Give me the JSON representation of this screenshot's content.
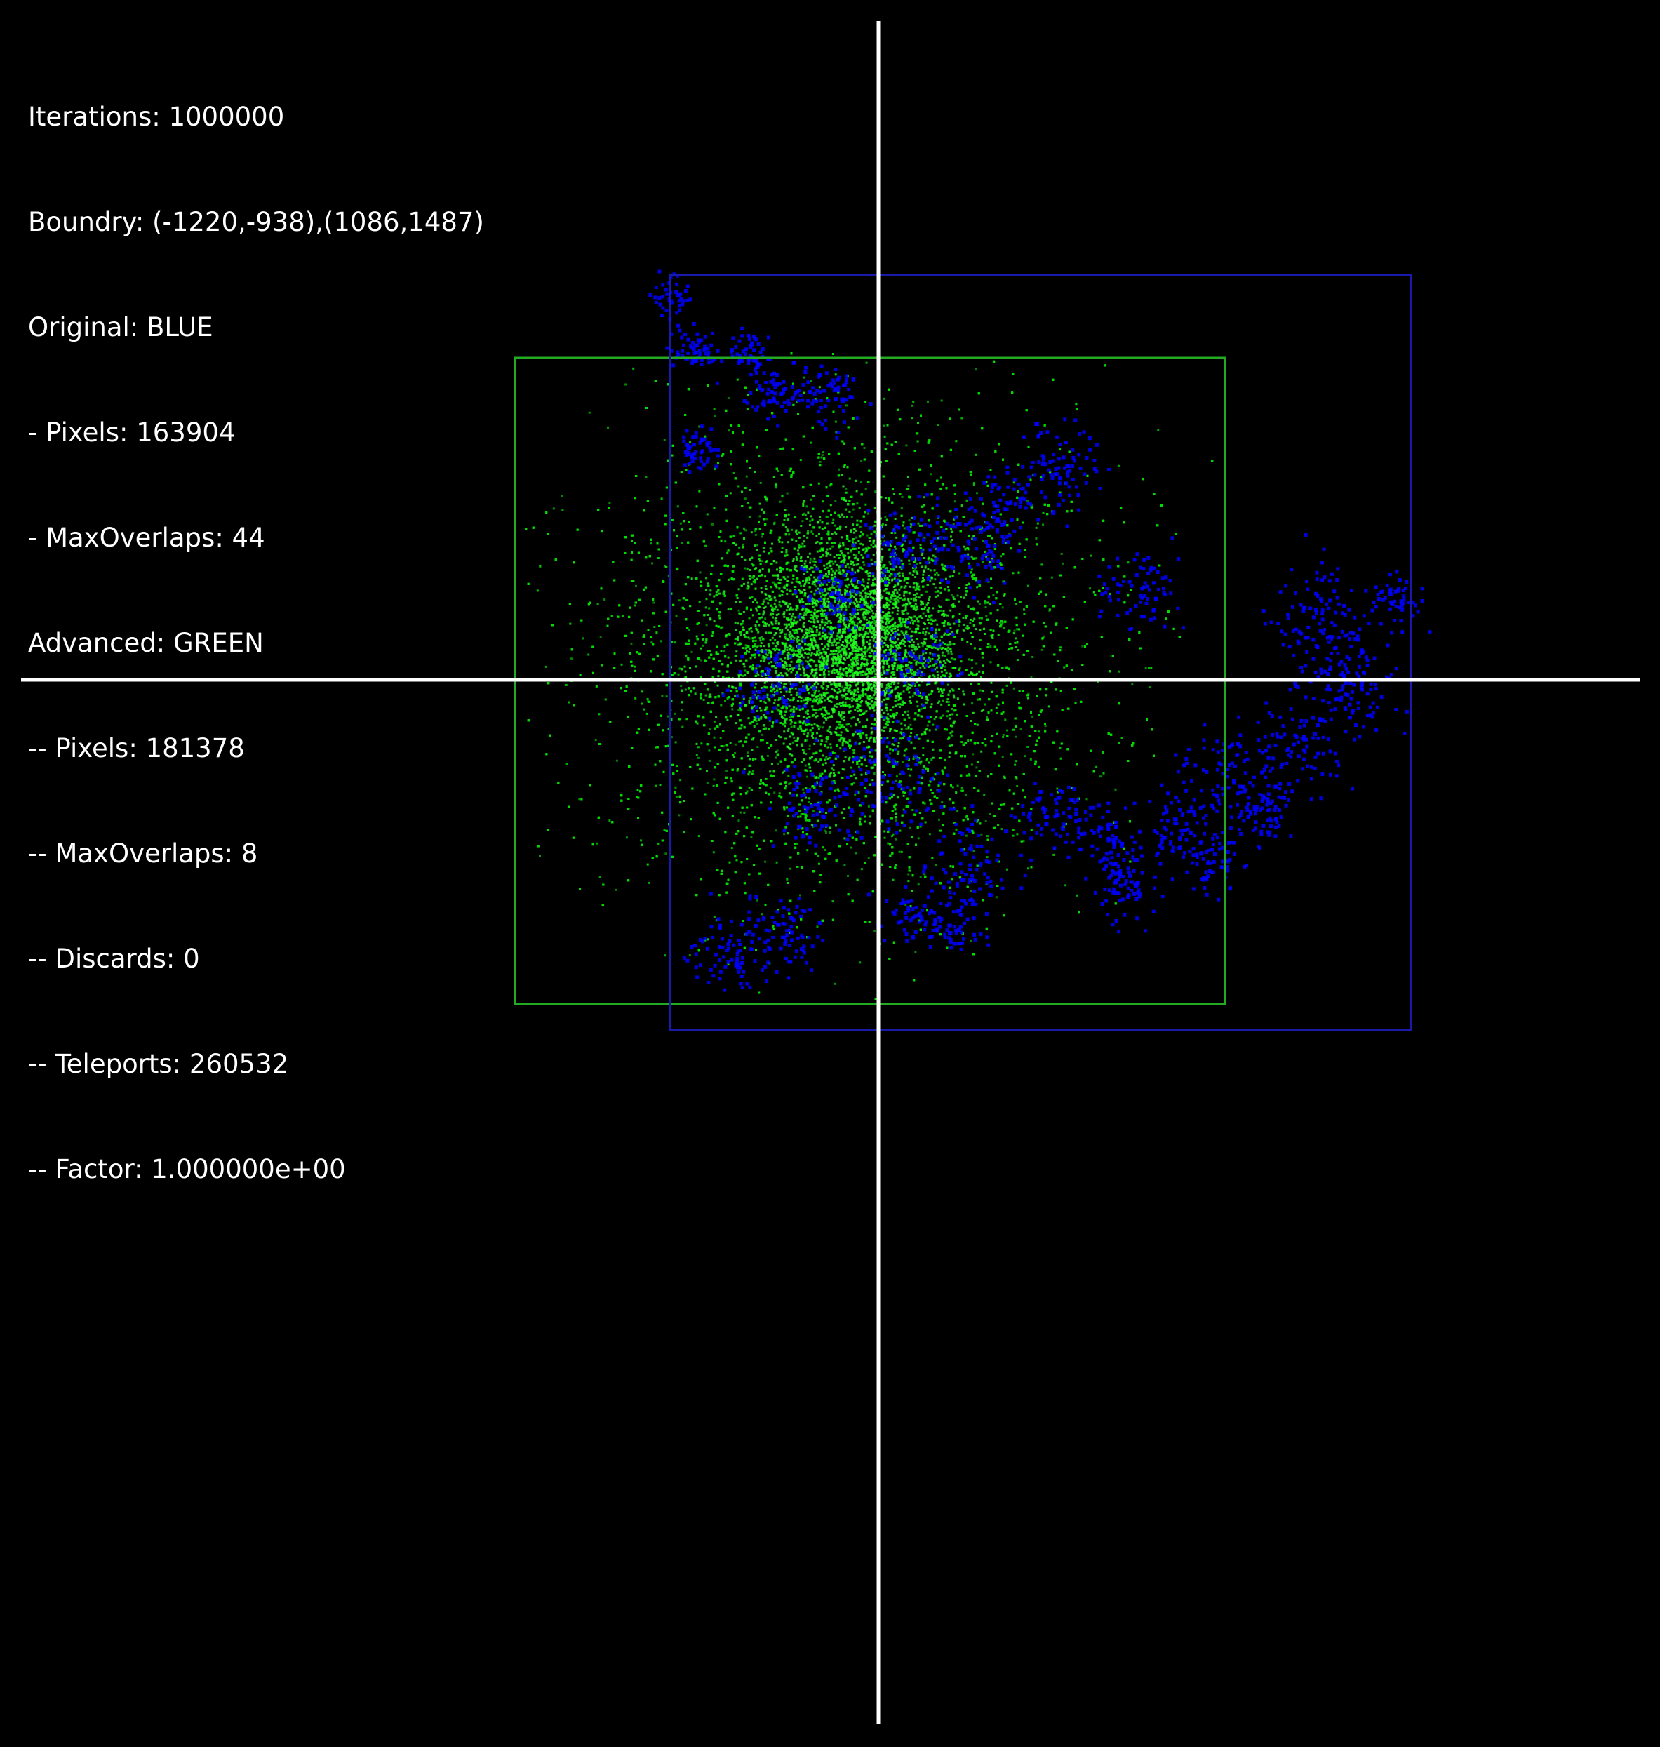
{
  "stats": {
    "iterations": "Iterations: 1000000",
    "boundry": "Boundry: (-1220,-938),(1086,1487)",
    "original": "Original: BLUE",
    "original_pixels": "- Pixels: 163904",
    "original_max_overlaps": "- MaxOverlaps: 44",
    "advanced": "Advanced: GREEN",
    "advanced_pixels": "-- Pixels: 181378",
    "advanced_max_overlaps": "-- MaxOverlaps: 8",
    "advanced_discards": "-- Discards: 0",
    "advanced_teleports": "-- Teleports: 260532",
    "advanced_factor": "-- Factor: 1.000000e+00"
  },
  "colors": {
    "background": "#000000",
    "text": "#ffffff",
    "axes": "#ffffff",
    "original": "#0000ff",
    "advanced": "#00dd00",
    "advanced_box": "#22aa22",
    "original_box": "#1a1aaa"
  }
}
